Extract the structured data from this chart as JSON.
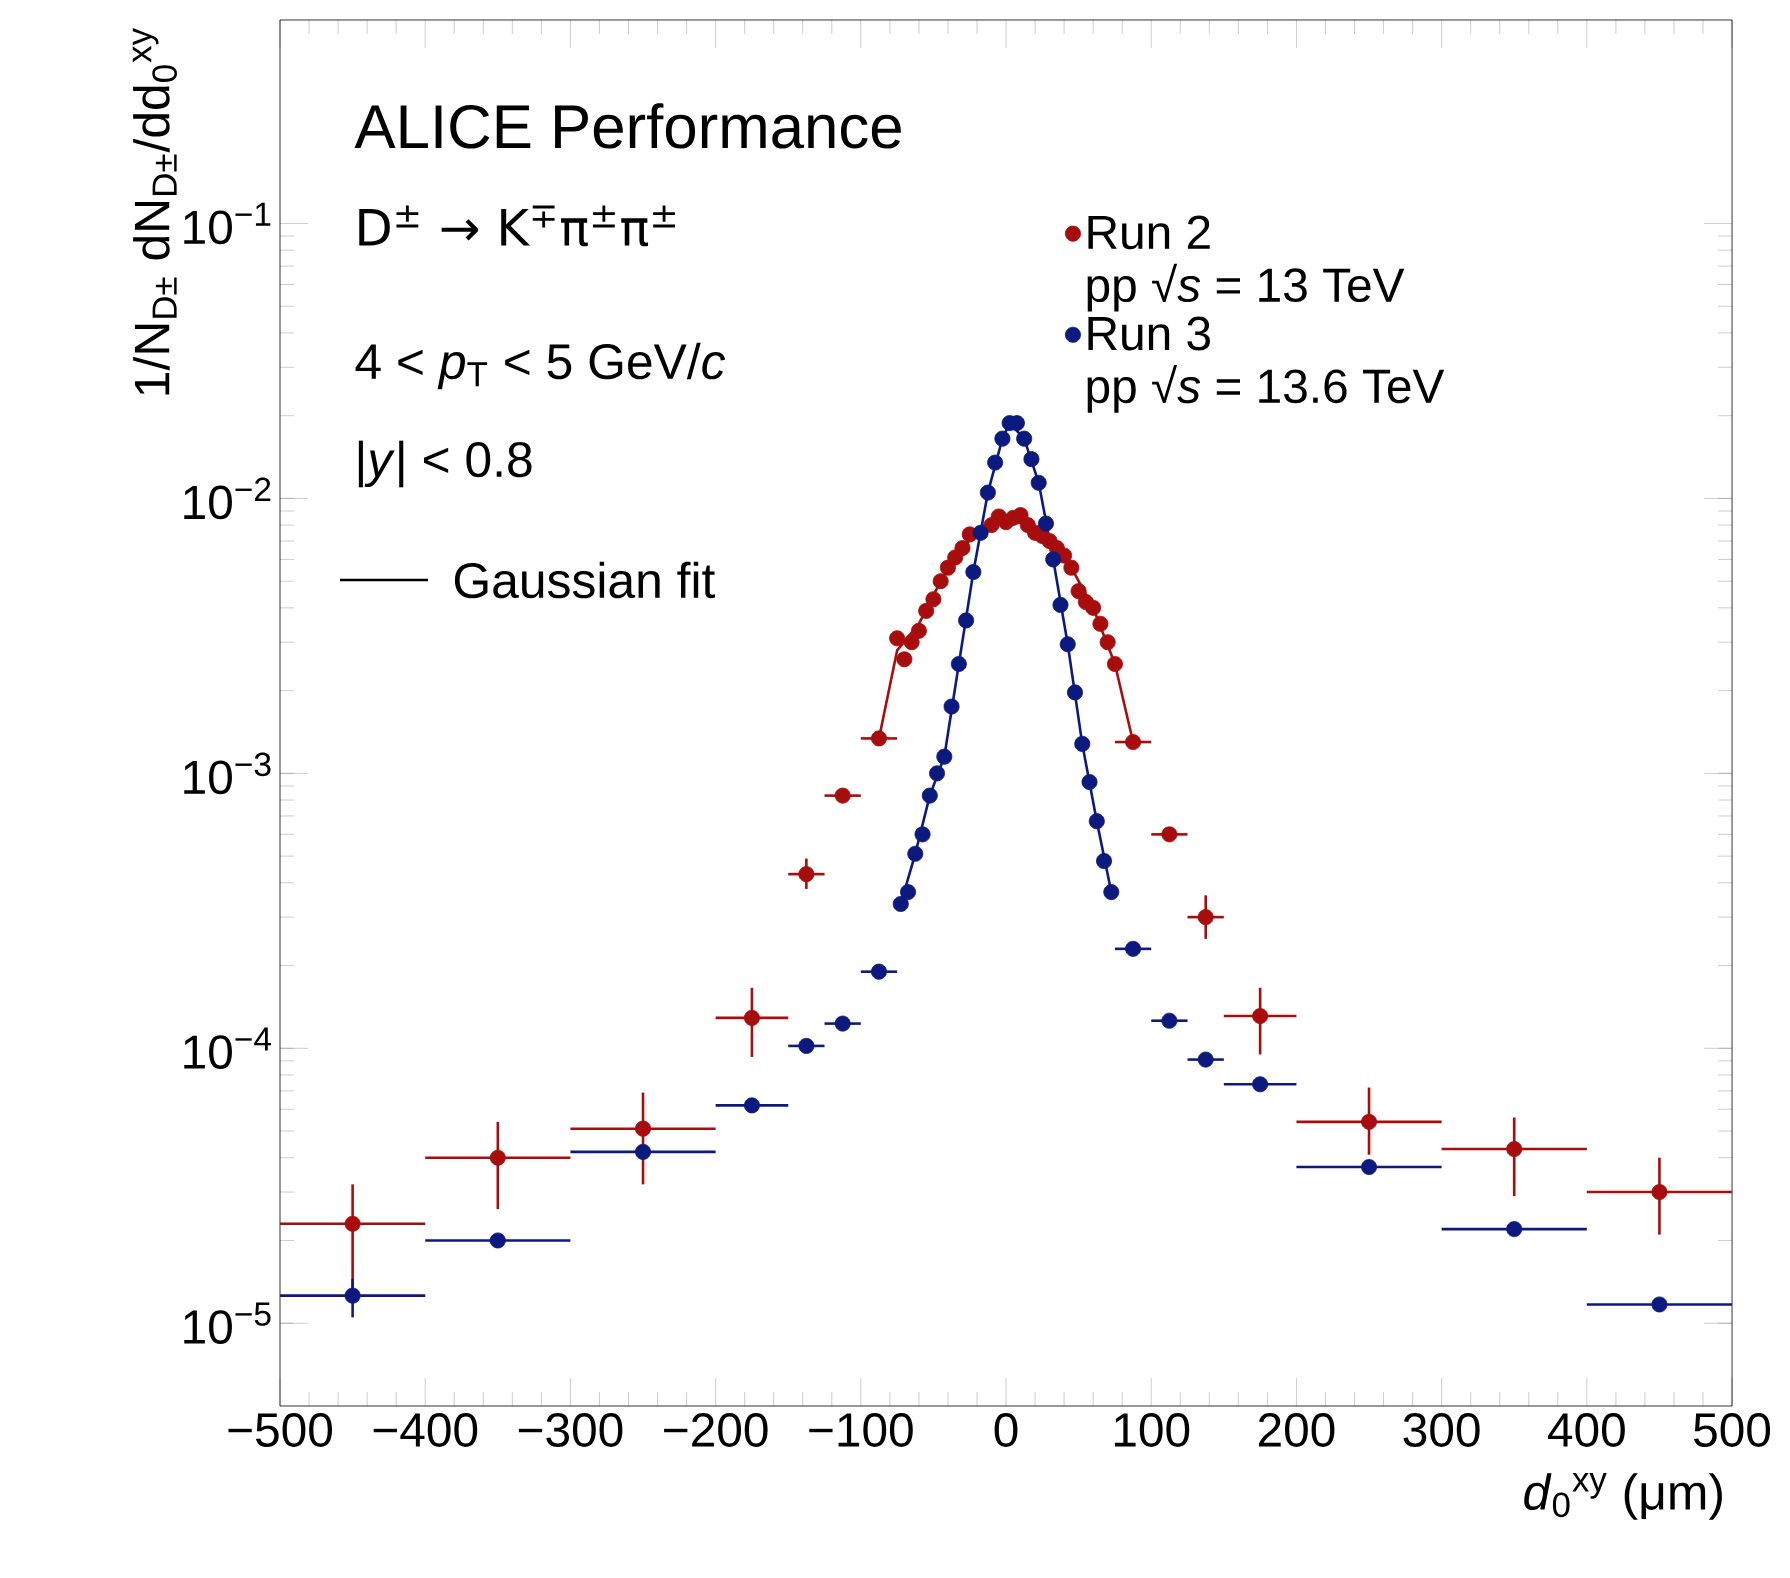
{
  "chart_data": {
    "type": "scatter",
    "xlabel": "*d*$_{0}$$^{xy}$ (μm)",
    "ylabel": "1/N$_{D±}$ dN$_{D±}$/dd$_{0}$$^{xy}$",
    "log": "y",
    "legend": "top right",
    "grid": false,
    "xlim": [
      -500,
      500
    ],
    "ylim": [
      5e-06,
      0.55
    ],
    "xticks": [
      {
        "value": -500,
        "label": "−500"
      },
      {
        "value": -400,
        "label": "−400"
      },
      {
        "value": -300,
        "label": "−300"
      },
      {
        "value": -200,
        "label": "−200"
      },
      {
        "value": -100,
        "label": "−100"
      },
      0,
      100,
      200,
      300,
      400,
      500
    ],
    "yticks": [
      {
        "value": 1e-05,
        "label": "10$^{−5}$"
      },
      {
        "value": 0.0001,
        "label": "10$^{−4}$"
      },
      {
        "value": 0.001,
        "label": "10$^{−3}$"
      },
      {
        "value": 0.01,
        "label": "10$^{−2}$"
      },
      {
        "value": 0.1,
        "label": "10$^{−1}$"
      }
    ],
    "annotations": [
      "ALICE Performance",
      "D$^{±}$ → K$^{∓}$π$^{±}$π$^{±}$",
      "4 < *p*$_{T}$ < 5 GeV/*c*",
      "|*y*| < 0.8",
      "Gaussian fit",
      "pp √*s* = 13 TeV",
      "pp √*s* = 13.6 TeV"
    ],
    "series": [
      {
        "name": "Run 2",
        "marker": "circle",
        "color": "#a80d0d",
        "x": [
          -450,
          -350,
          -250,
          -175,
          -137.5,
          -112.5,
          -87.5,
          -75,
          -70,
          -65,
          -60,
          -55,
          -50,
          -45,
          -40,
          -35,
          -30,
          -25,
          -20,
          -15,
          -10,
          -5,
          0,
          5,
          10,
          15,
          20,
          25,
          30,
          35,
          40,
          45,
          50,
          55,
          60,
          65,
          70,
          75,
          87.5,
          112.5,
          137.5,
          175,
          250,
          350,
          450
        ],
        "values": [
          2.3e-05,
          4e-05,
          5.1e-05,
          0.000129,
          0.00043,
          0.00083,
          0.00134,
          0.0031,
          0.0026,
          0.003,
          0.0033,
          0.0039,
          0.0043,
          0.005,
          0.0056,
          0.0061,
          0.0066,
          0.0074,
          null,
          null,
          0.008,
          0.0086,
          0.0082,
          0.0085,
          0.0087,
          0.008,
          0.0075,
          0.0073,
          0.007,
          0.0066,
          0.0062,
          0.0056,
          0.0046,
          0.0042,
          0.004,
          0.0035,
          0.003,
          0.0025,
          0.0013,
          0.0006,
          0.0003,
          0.000131,
          5.4e-05,
          4.3e-05,
          3e-05
        ],
        "errors": [
          [
            1.26e-05,
            3.2e-05
          ],
          [
            2.6e-05,
            5.4e-05
          ],
          [
            3.2e-05,
            6.9e-05
          ],
          [
            9.3e-05,
            0.000166
          ],
          [
            0.00038,
            0.00049
          ],
          null,
          null,
          null,
          null,
          null,
          null,
          null,
          null,
          null,
          null,
          null,
          null,
          null,
          null,
          null,
          null,
          null,
          null,
          null,
          null,
          null,
          null,
          null,
          null,
          null,
          null,
          null,
          null,
          null,
          null,
          null,
          null,
          null,
          null,
          null,
          [
            0.00025,
            0.00036
          ],
          [
            9.5e-05,
            0.000166
          ],
          [
            4.1e-05,
            7.2e-05
          ],
          [
            2.9e-05,
            5.6e-05
          ],
          [
            2.1e-05,
            4e-05
          ]
        ],
        "xerrors": [
          50,
          50,
          50,
          25,
          12.5,
          12.5,
          12.5,
          null,
          null,
          null,
          null,
          null,
          null,
          null,
          null,
          null,
          null,
          null,
          null,
          null,
          null,
          null,
          null,
          null,
          null,
          null,
          null,
          null,
          null,
          null,
          null,
          null,
          null,
          null,
          null,
          null,
          null,
          null,
          12.5,
          12.5,
          12.5,
          25,
          50,
          50,
          50
        ]
      },
      {
        "name": "Run 3",
        "marker": "circle",
        "color": "#0c1a80",
        "x": [
          -450,
          -350,
          -250,
          -175,
          -137.5,
          -112.5,
          -87.5,
          -72.5,
          -67.5,
          -62.5,
          -57.5,
          -52.5,
          -47.5,
          -42.5,
          -37.5,
          -32.5,
          -27.5,
          -22.5,
          -17.5,
          -12.5,
          -7.5,
          -2.5,
          2.5,
          7.5,
          12.5,
          17.5,
          22.5,
          27.5,
          32.5,
          37.5,
          42.5,
          47.5,
          52.5,
          57.5,
          62.5,
          67.5,
          72.5,
          87.5,
          112.5,
          137.5,
          175,
          250,
          350,
          450
        ],
        "values": [
          1.26e-05,
          2e-05,
          4.2e-05,
          6.2e-05,
          0.000102,
          0.000123,
          0.00019,
          0.000335,
          0.00037,
          0.00051,
          0.0006,
          0.00083,
          0.001,
          0.00115,
          0.00175,
          0.0025,
          0.0036,
          0.0054,
          0.0075,
          0.0105,
          0.0135,
          0.0165,
          0.0188,
          0.0188,
          0.0165,
          0.0139,
          0.0114,
          0.0081,
          0.006,
          0.0041,
          0.00295,
          0.00197,
          0.00128,
          0.00093,
          0.00067,
          0.00048,
          0.00037,
          0.00023,
          0.000126,
          9.1e-05,
          7.4e-05,
          3.7e-05,
          2.2e-05,
          1.17e-05
        ],
        "errors": [
          [
            1.05e-05,
            1.45e-05
          ],
          null,
          null,
          null,
          null,
          null,
          null,
          null,
          null,
          null,
          null,
          null,
          null,
          null,
          null,
          null,
          null,
          null,
          null,
          null,
          null,
          null,
          null,
          null,
          null,
          null,
          null,
          null,
          null,
          null,
          null,
          null,
          null,
          null,
          null,
          null,
          null,
          null,
          null,
          null,
          null,
          null,
          null,
          null
        ],
        "xerrors": [
          50,
          50,
          50,
          25,
          12.5,
          12.5,
          12.5,
          null,
          null,
          null,
          null,
          null,
          null,
          null,
          null,
          null,
          null,
          null,
          null,
          null,
          null,
          null,
          null,
          null,
          null,
          null,
          null,
          null,
          null,
          null,
          null,
          null,
          null,
          null,
          null,
          null,
          null,
          12.5,
          12.5,
          12.5,
          25,
          50,
          50,
          50
        ]
      },
      {
        "type": "line",
        "marker": "none",
        "color": "#a80d0d",
        "x": [
          -87.5,
          -75,
          -60,
          -45,
          -30,
          -15,
          0,
          15,
          30,
          45,
          60,
          75,
          87.5
        ],
        "values": [
          0.00134,
          0.0028,
          0.0035,
          0.005,
          0.0066,
          0.008,
          0.0084,
          0.008,
          0.007,
          0.0056,
          0.004,
          0.0025,
          0.0013
        ]
      },
      {
        "type": "line",
        "marker": "none",
        "color": "#0c1a80",
        "x": [
          -72.5,
          -62.5,
          -52.5,
          -42.5,
          -32.5,
          -22.5,
          -12.5,
          -2.5,
          2.5,
          12.5,
          22.5,
          32.5,
          42.5,
          52.5,
          62.5,
          72.5
        ],
        "values": [
          0.000335,
          0.00051,
          0.00083,
          0.00115,
          0.0025,
          0.0054,
          0.0105,
          0.0165,
          0.0188,
          0.0165,
          0.0114,
          0.006,
          0.00295,
          0.00128,
          0.00067,
          0.00037
        ]
      }
    ]
  }
}
